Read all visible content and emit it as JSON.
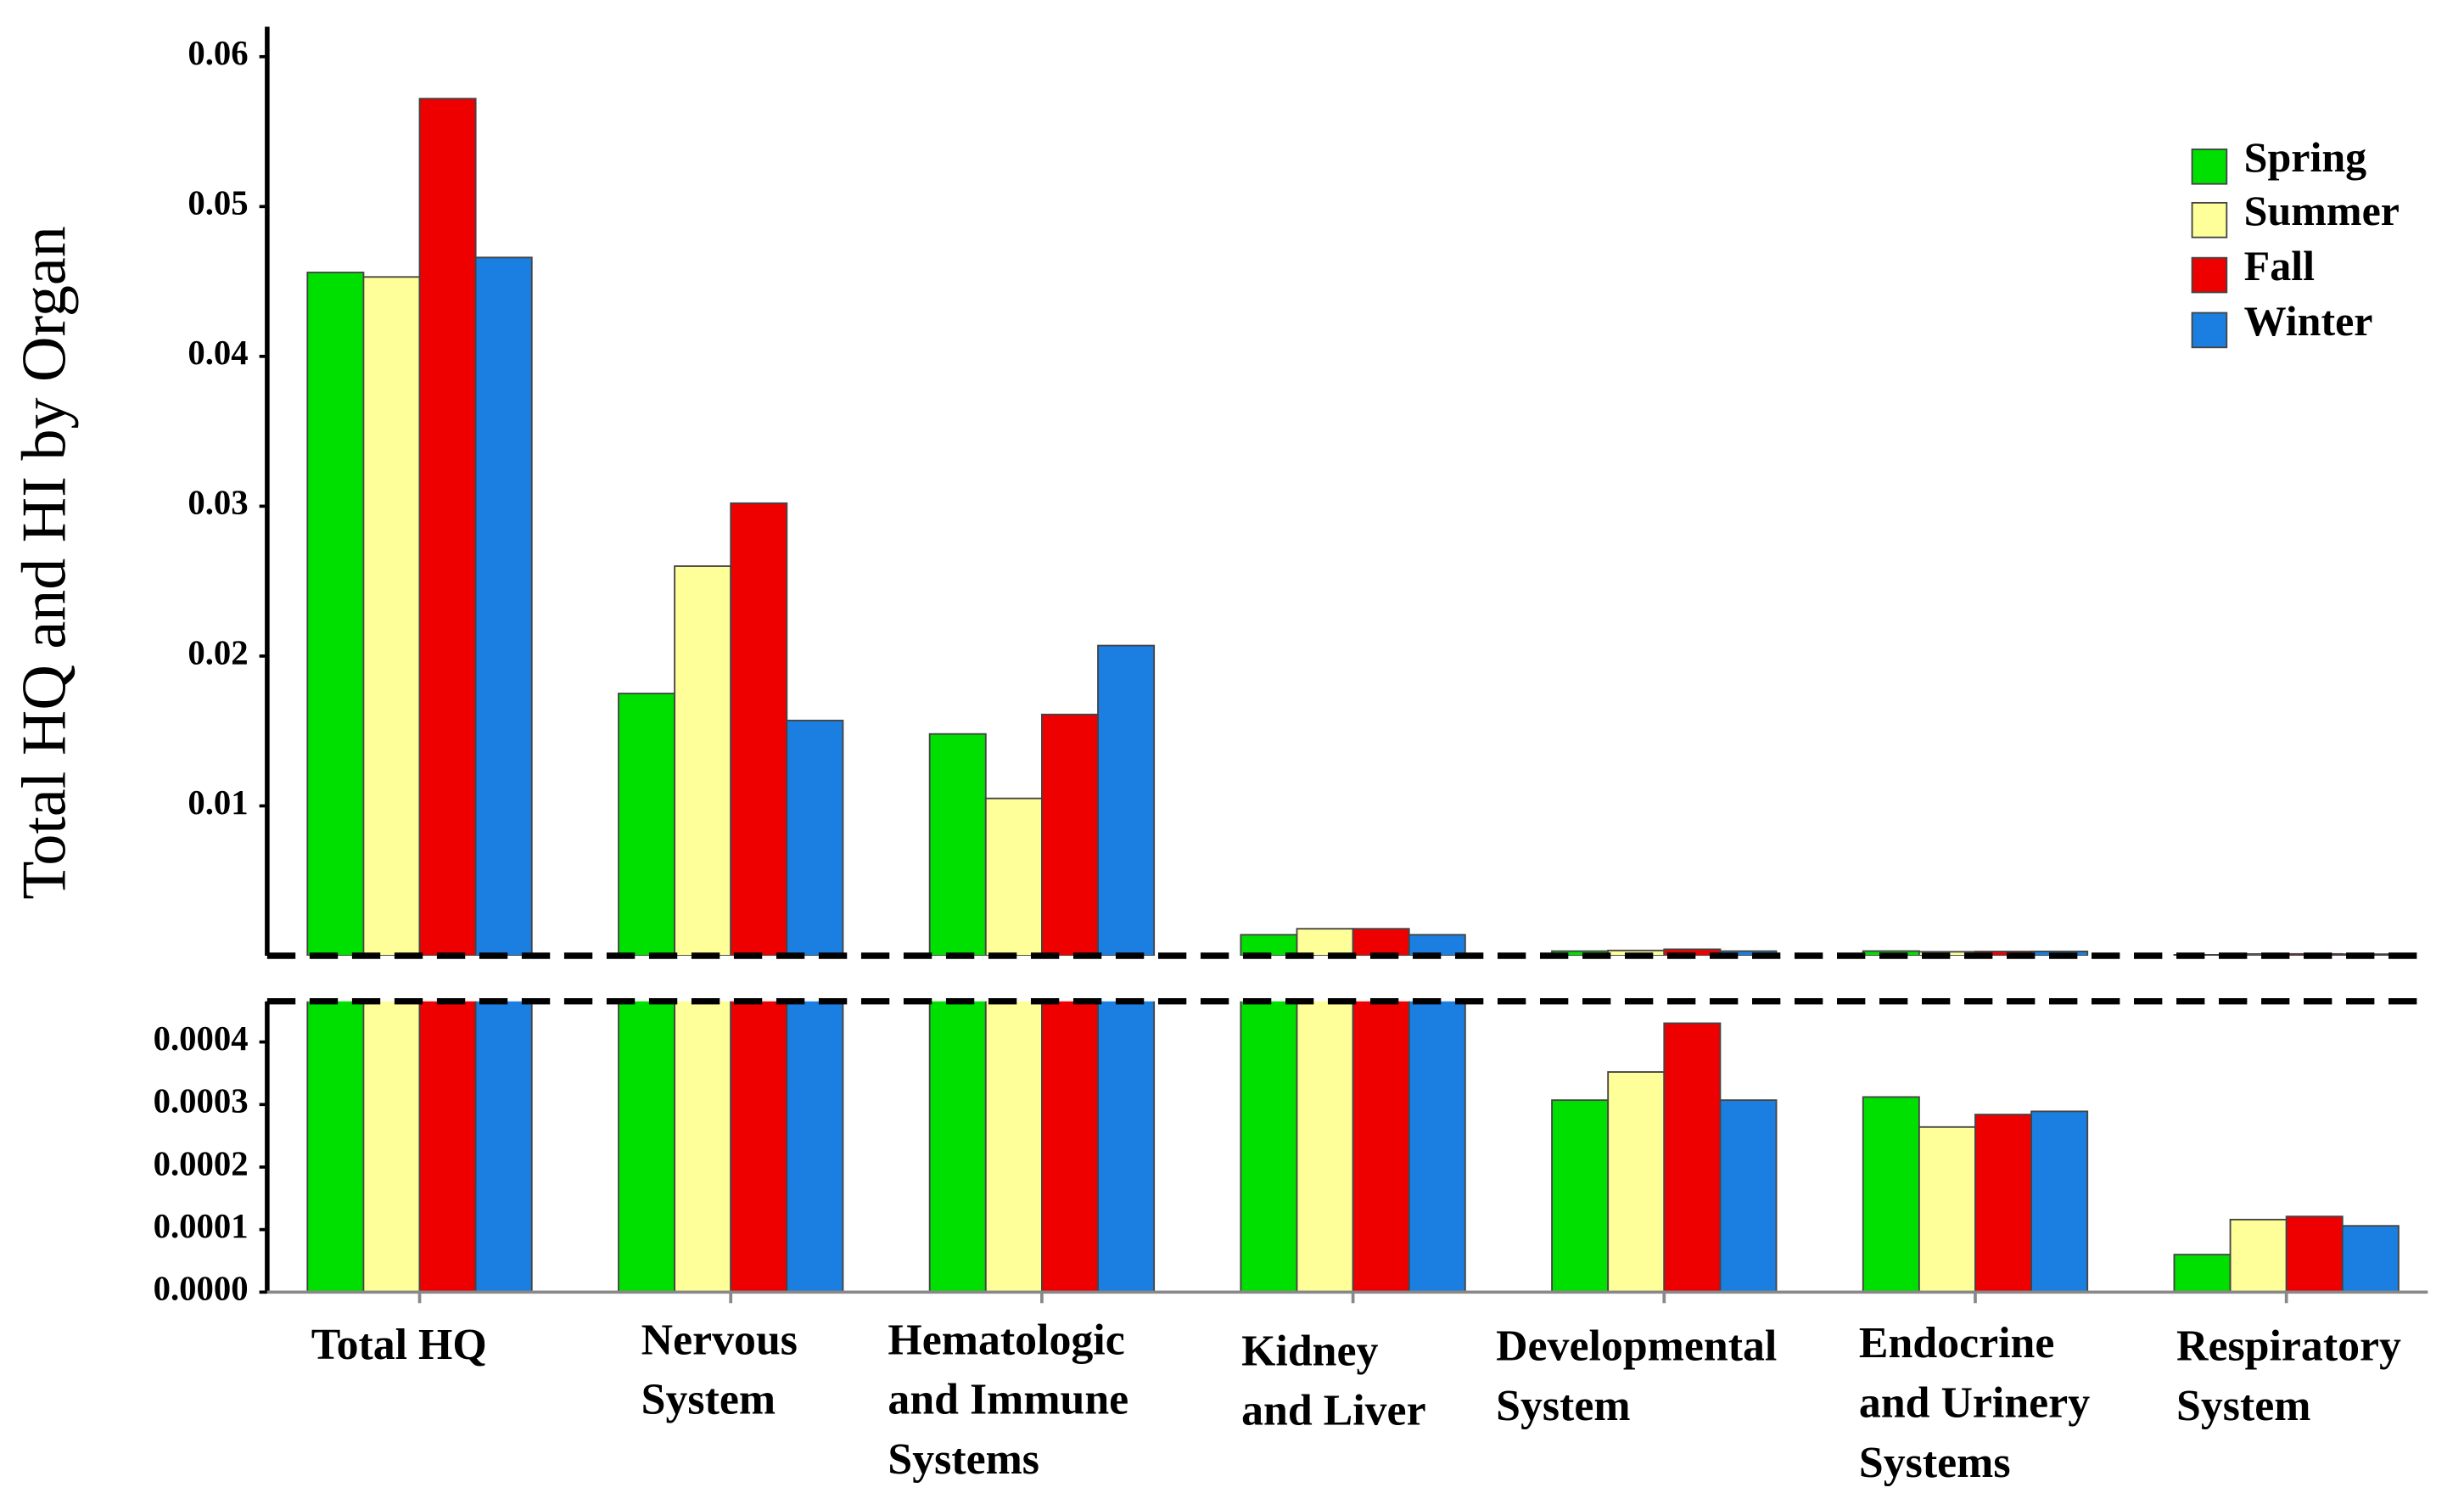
{
  "chart_data": {
    "type": "bar",
    "y_label": "Total HQ and HI by Organ",
    "categories": [
      [
        "Total HQ"
      ],
      [
        "Nervous",
        "System"
      ],
      [
        "Hematologic",
        "and Immune",
        "Systems"
      ],
      [
        "Kidney",
        "and Liver"
      ],
      [
        "Developmental",
        "System"
      ],
      [
        "Endocrine",
        "and Urinery",
        "Systems"
      ],
      [
        "Respiratory",
        "System"
      ]
    ],
    "panels": [
      {
        "ylim": [
          0,
          0.062
        ],
        "yticks": [
          0.01,
          0.02,
          0.03,
          0.04,
          0.05,
          0.06
        ]
      },
      {
        "ylim": [
          0,
          0.000465
        ],
        "yticks": [
          {
            "value": 0,
            "label": "0.0000"
          },
          0.0001,
          0.0002,
          0.0003,
          0.0004
        ]
      }
    ],
    "series": [
      {
        "name": "Spring",
        "color": "#00e000",
        "values": [
          0.0456,
          0.0175,
          0.0148,
          0.0014,
          0.000307,
          0.000312,
          6e-05
        ]
      },
      {
        "name": "Summer",
        "color": "#ffff99",
        "values": [
          0.0453,
          0.026,
          0.0105,
          0.0018,
          0.000352,
          0.000264,
          0.000116
        ]
      },
      {
        "name": "Fall",
        "color": "#ee0000",
        "values": [
          0.0572,
          0.0302,
          0.0161,
          0.0018,
          0.00043,
          0.000284,
          0.000121
        ]
      },
      {
        "name": "Winter",
        "color": "#1a7fe0",
        "values": [
          0.0466,
          0.0157,
          0.0207,
          0.0014,
          0.000307,
          0.000289,
          0.000106
        ]
      }
    ]
  }
}
